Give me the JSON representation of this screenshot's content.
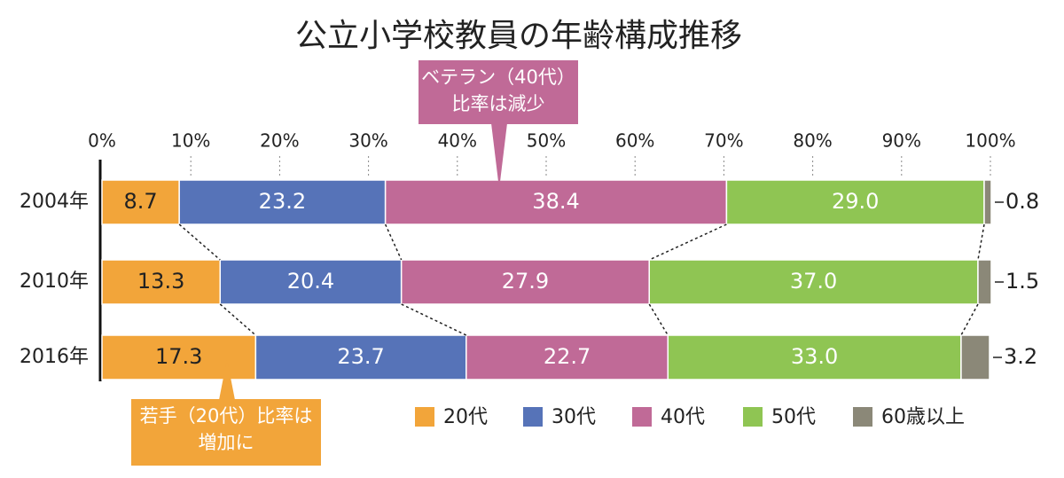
{
  "chart_data": {
    "type": "stacked-bar-horizontal",
    "title": "公立小学校教員の年齢構成推移",
    "categories": [
      "2004年",
      "2010年",
      "2016年"
    ],
    "xlim": [
      0,
      100
    ],
    "xticks": [
      {
        "value": 0,
        "label": "0%"
      },
      {
        "value": 10,
        "label": "10%"
      },
      {
        "value": 20,
        "label": "20%"
      },
      {
        "value": 30,
        "label": "30%"
      },
      {
        "value": 40,
        "label": "40%"
      },
      {
        "value": 50,
        "label": "50%"
      },
      {
        "value": 60,
        "label": "60%"
      },
      {
        "value": 70,
        "label": "70%"
      },
      {
        "value": 80,
        "label": "80%"
      },
      {
        "value": 90,
        "label": "90%"
      },
      {
        "value": 100,
        "label": "100%"
      }
    ],
    "series": [
      {
        "name": "20代",
        "color": "#f2a53a",
        "values": [
          8.7,
          13.3,
          17.3
        ],
        "value_labels": [
          "8.7",
          "13.3",
          "17.3"
        ]
      },
      {
        "name": "30代",
        "color": "#5673b8",
        "values": [
          23.2,
          20.4,
          23.7
        ],
        "value_labels": [
          "23.2",
          "20.4",
          "23.7"
        ]
      },
      {
        "name": "40代",
        "color": "#c06a97",
        "values": [
          38.4,
          27.9,
          22.7
        ],
        "value_labels": [
          "38.4",
          "27.9",
          "22.7"
        ]
      },
      {
        "name": "50代",
        "color": "#8fc553",
        "values": [
          29.0,
          37.0,
          33.0
        ],
        "value_labels": [
          "29.0",
          "37.0",
          "33.0"
        ]
      },
      {
        "name": "60歳以上",
        "color": "#8b8878",
        "values": [
          0.8,
          1.5,
          3.2
        ],
        "value_labels": [
          "0.8",
          "1.5",
          "3.2"
        ]
      }
    ],
    "annotations": [
      {
        "lines": [
          "ベテラン（40代）",
          "比率は減少"
        ],
        "color": "#c06a97"
      },
      {
        "lines": [
          "若手（20代）比率は",
          "増加に"
        ],
        "color": "#f2a53a"
      }
    ]
  }
}
